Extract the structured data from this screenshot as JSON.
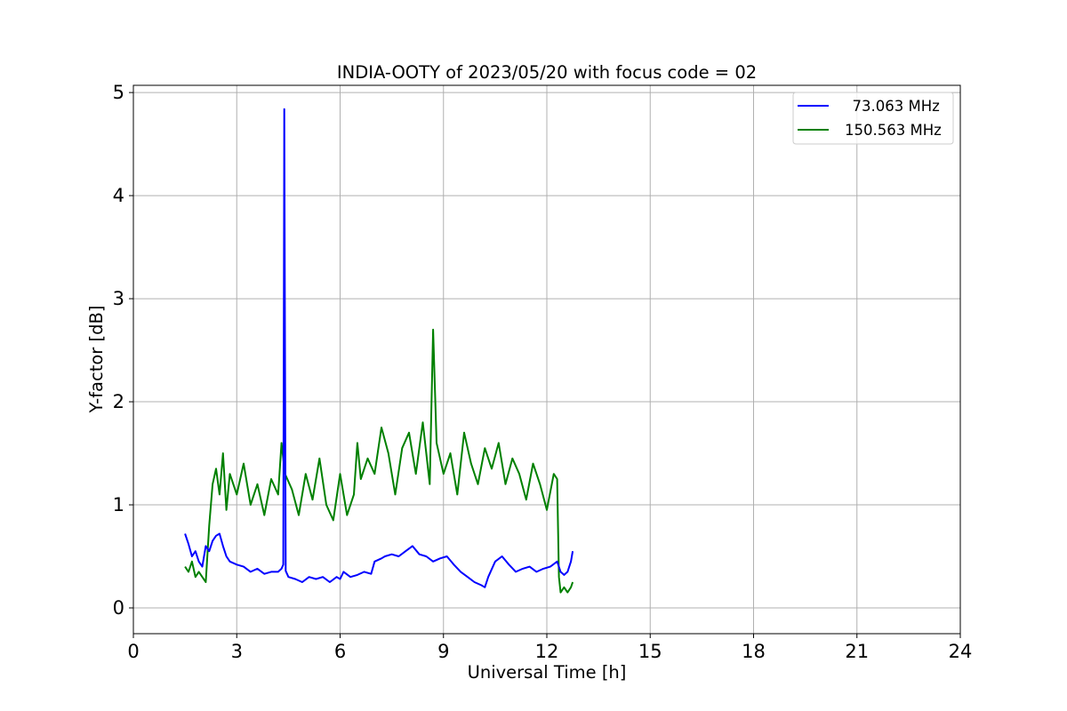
{
  "chart_data": {
    "type": "line",
    "title": "INDIA-OOTY of 2023/05/20 with focus code = 02",
    "xlabel": "Universal Time [h]",
    "ylabel": "Y-factor [dB]",
    "xlim": [
      0,
      24
    ],
    "ylim": [
      -0.25,
      5.07
    ],
    "xticks": [
      0,
      3,
      6,
      9,
      12,
      15,
      18,
      21,
      24
    ],
    "xtick_labels": [
      "0",
      "3",
      "6",
      "9",
      "12",
      "15",
      "18",
      "21",
      "24"
    ],
    "yticks": [
      0,
      1,
      2,
      3,
      4,
      5
    ],
    "ytick_labels": [
      "0",
      "1",
      "2",
      "3",
      "4",
      "5"
    ],
    "grid": true,
    "legend_position": "top-right",
    "series": [
      {
        "name": "73.063 MHz",
        "legend_label": "  73.063 MHz",
        "color": "#0000ff",
        "x": [
          1.5,
          1.6,
          1.7,
          1.8,
          1.9,
          2.0,
          2.1,
          2.2,
          2.3,
          2.4,
          2.5,
          2.6,
          2.7,
          2.8,
          3.0,
          3.2,
          3.4,
          3.6,
          3.8,
          4.0,
          4.2,
          4.3,
          4.35,
          4.38,
          4.42,
          4.5,
          4.7,
          4.9,
          5.1,
          5.3,
          5.5,
          5.7,
          5.9,
          6.0,
          6.1,
          6.3,
          6.5,
          6.7,
          6.9,
          7.0,
          7.2,
          7.3,
          7.5,
          7.7,
          7.9,
          8.1,
          8.3,
          8.5,
          8.7,
          8.9,
          9.1,
          9.3,
          9.5,
          9.7,
          9.9,
          10.1,
          10.2,
          10.3,
          10.5,
          10.7,
          10.9,
          11.1,
          11.3,
          11.5,
          11.7,
          11.9,
          12.1,
          12.3,
          12.4,
          12.5,
          12.6,
          12.7,
          12.75
        ],
        "y": [
          0.72,
          0.62,
          0.5,
          0.55,
          0.45,
          0.4,
          0.6,
          0.55,
          0.65,
          0.7,
          0.72,
          0.6,
          0.5,
          0.45,
          0.42,
          0.4,
          0.35,
          0.38,
          0.33,
          0.35,
          0.35,
          0.38,
          0.42,
          4.84,
          0.36,
          0.3,
          0.28,
          0.25,
          0.3,
          0.28,
          0.3,
          0.25,
          0.3,
          0.28,
          0.35,
          0.3,
          0.32,
          0.35,
          0.33,
          0.45,
          0.48,
          0.5,
          0.52,
          0.5,
          0.55,
          0.6,
          0.52,
          0.5,
          0.45,
          0.48,
          0.5,
          0.42,
          0.35,
          0.3,
          0.25,
          0.22,
          0.2,
          0.3,
          0.45,
          0.5,
          0.42,
          0.35,
          0.38,
          0.4,
          0.35,
          0.38,
          0.4,
          0.45,
          0.35,
          0.32,
          0.35,
          0.45,
          0.55
        ]
      },
      {
        "name": "150.563 MHz",
        "legend_label": "150.563 MHz",
        "color": "#008000",
        "x": [
          1.5,
          1.6,
          1.7,
          1.8,
          1.9,
          2.0,
          2.1,
          2.2,
          2.3,
          2.4,
          2.5,
          2.6,
          2.7,
          2.8,
          3.0,
          3.2,
          3.4,
          3.6,
          3.8,
          4.0,
          4.2,
          4.3,
          4.4,
          4.6,
          4.8,
          5.0,
          5.2,
          5.4,
          5.6,
          5.8,
          6.0,
          6.2,
          6.4,
          6.5,
          6.6,
          6.8,
          7.0,
          7.2,
          7.4,
          7.6,
          7.8,
          8.0,
          8.2,
          8.4,
          8.6,
          8.7,
          8.8,
          9.0,
          9.2,
          9.4,
          9.6,
          9.8,
          10.0,
          10.2,
          10.4,
          10.6,
          10.8,
          11.0,
          11.2,
          11.4,
          11.6,
          11.8,
          12.0,
          12.2,
          12.3,
          12.35,
          12.4,
          12.5,
          12.6,
          12.7,
          12.75
        ],
        "y": [
          0.4,
          0.35,
          0.45,
          0.3,
          0.35,
          0.3,
          0.25,
          0.8,
          1.2,
          1.35,
          1.1,
          1.5,
          0.95,
          1.3,
          1.1,
          1.4,
          1.0,
          1.2,
          0.9,
          1.25,
          1.1,
          1.6,
          1.3,
          1.15,
          0.9,
          1.3,
          1.05,
          1.45,
          1.0,
          0.85,
          1.3,
          0.9,
          1.1,
          1.6,
          1.25,
          1.45,
          1.3,
          1.75,
          1.5,
          1.1,
          1.55,
          1.7,
          1.3,
          1.8,
          1.2,
          2.7,
          1.6,
          1.3,
          1.5,
          1.1,
          1.7,
          1.4,
          1.2,
          1.55,
          1.35,
          1.6,
          1.2,
          1.45,
          1.3,
          1.05,
          1.4,
          1.2,
          0.95,
          1.3,
          1.25,
          0.3,
          0.15,
          0.2,
          0.15,
          0.2,
          0.25
        ]
      }
    ]
  }
}
